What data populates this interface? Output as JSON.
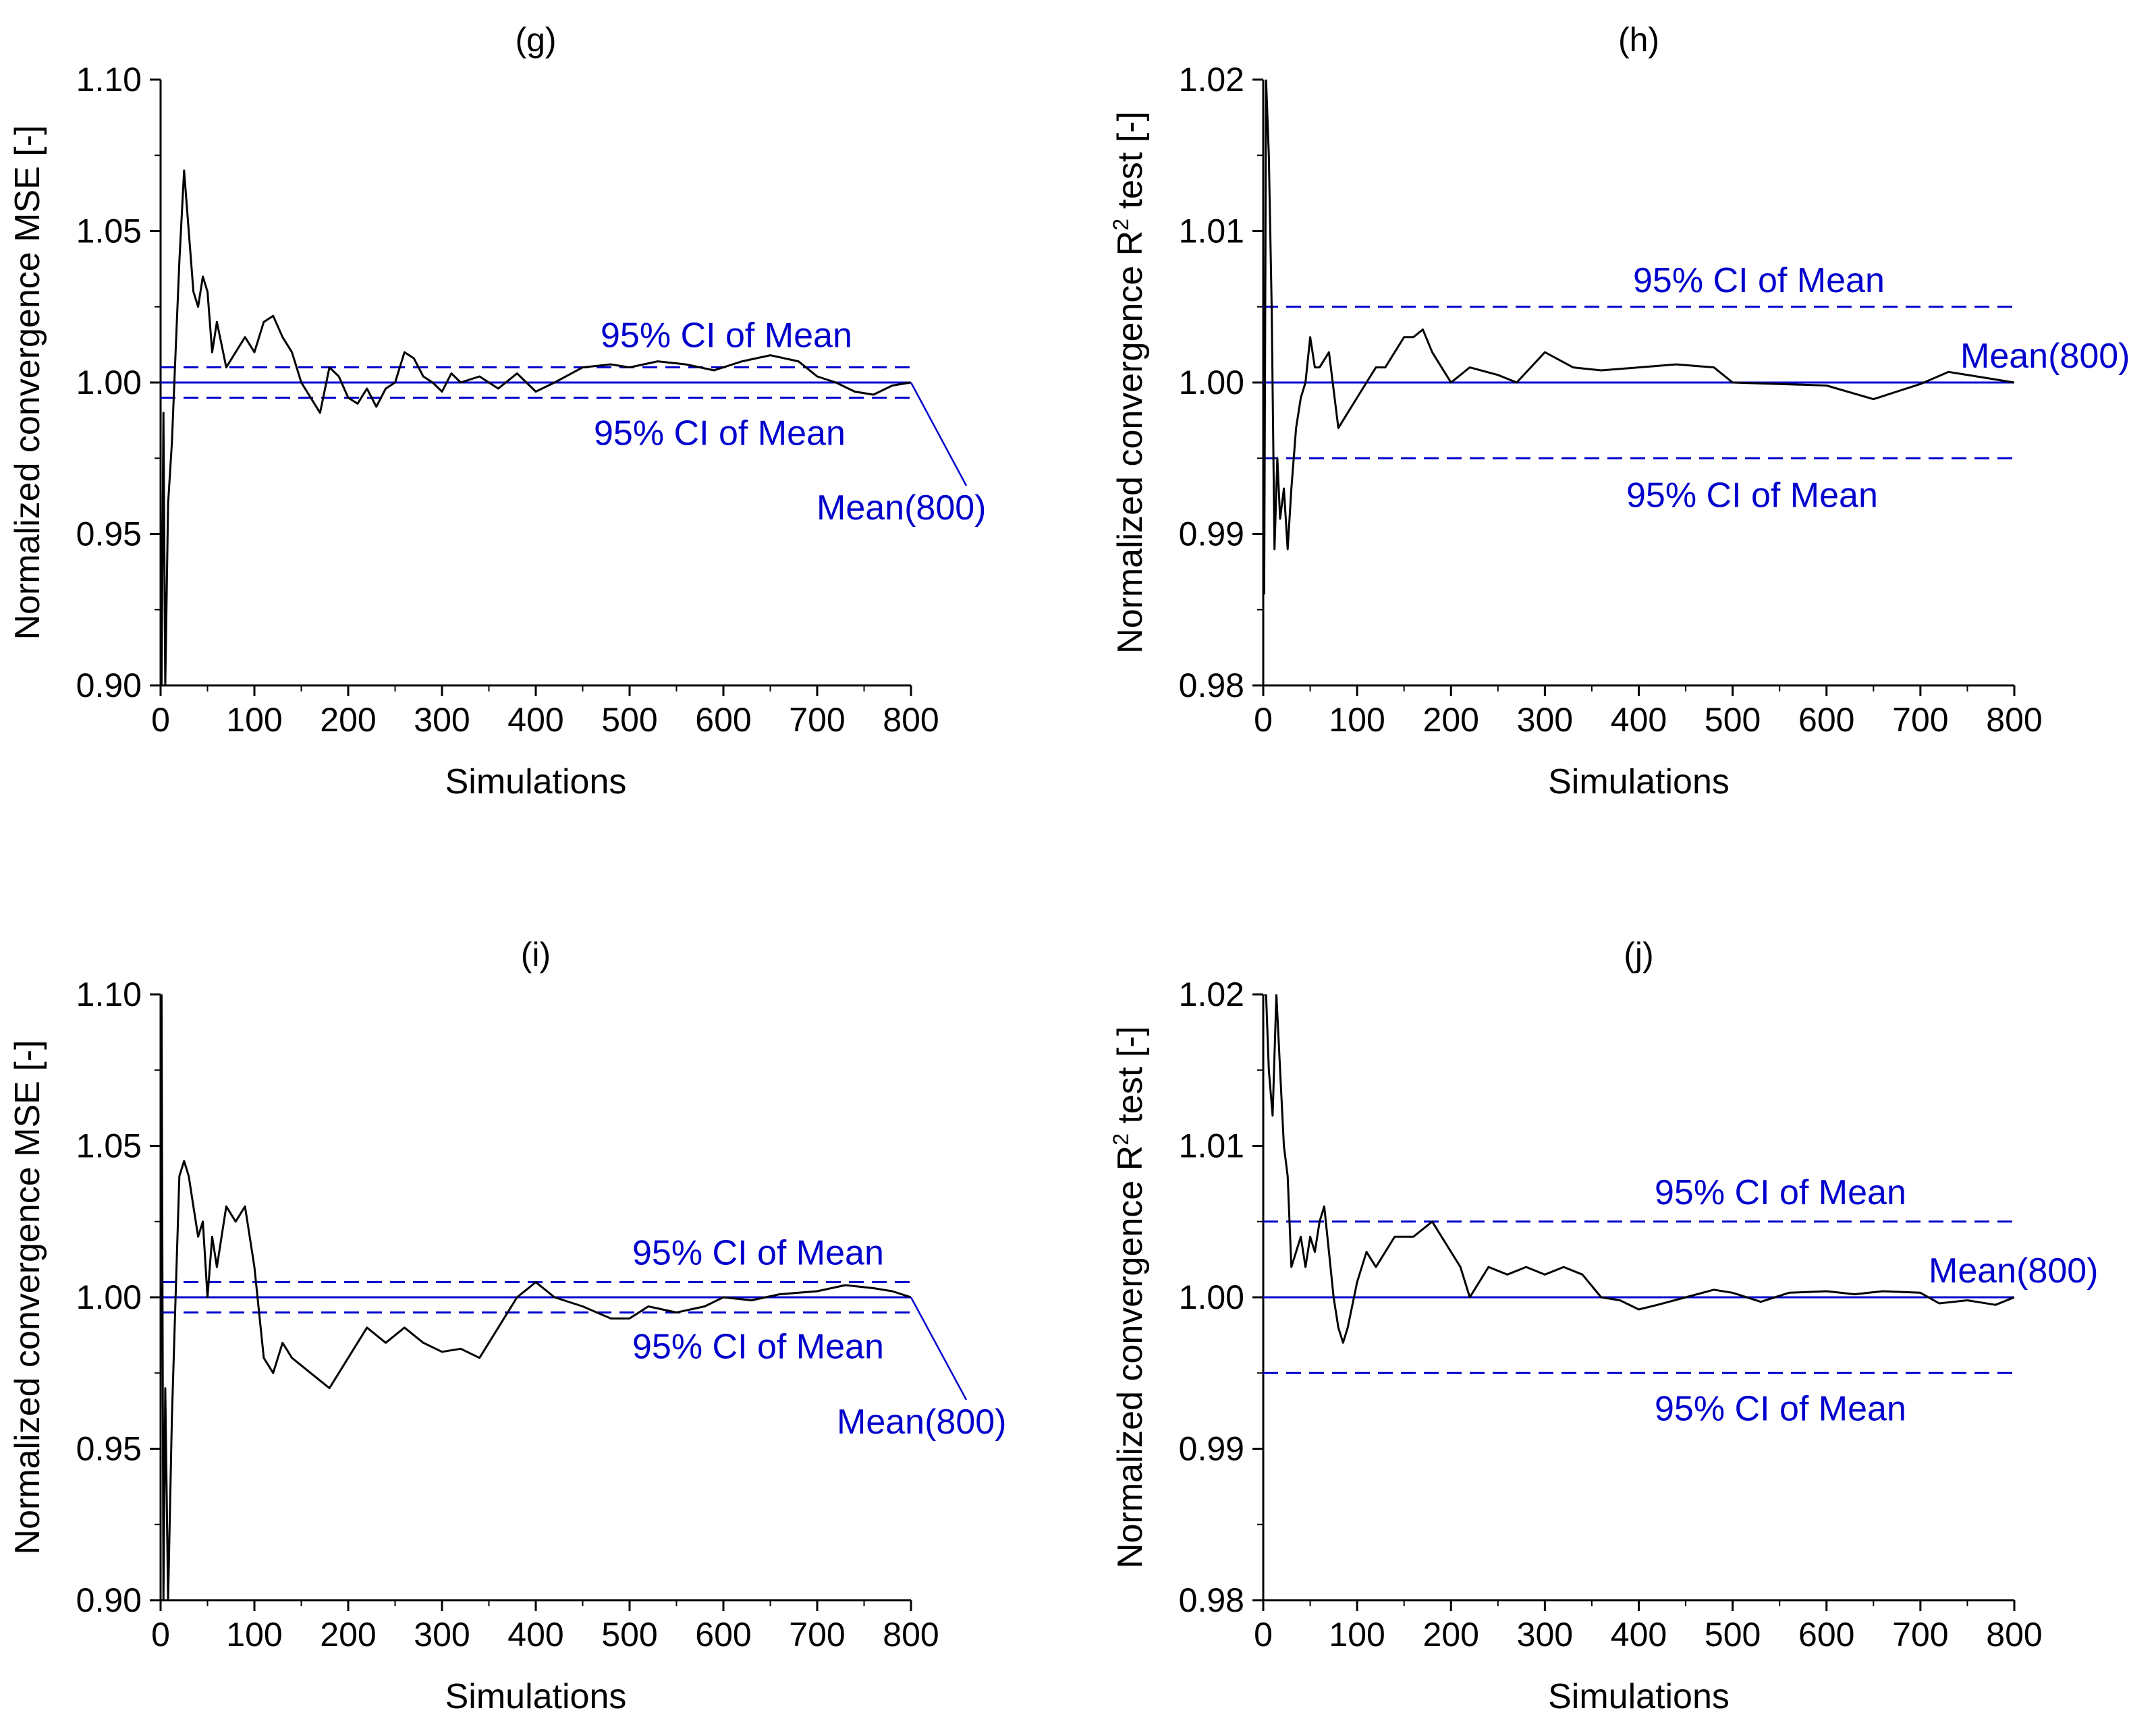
{
  "chart_data": [
    {
      "type": "line",
      "panel": "g",
      "title": "(g)",
      "xlabel": "Simulations",
      "ylabel": "Normalized convergence MSE [-]",
      "xlim": [
        0,
        800
      ],
      "ylim": [
        0.9,
        1.1
      ],
      "xticks": [
        "0",
        "100",
        "200",
        "300",
        "400",
        "500",
        "600",
        "700",
        "800"
      ],
      "yticks": [
        "0.90",
        "0.95",
        "1.00",
        "1.05",
        "1.10"
      ],
      "mean_line": 1.0,
      "ci_upper": 1.005,
      "ci_lower": 0.995,
      "annotations": {
        "ci_upper_label": "95% CI of Mean",
        "ci_lower_label": "95% CI of Mean",
        "mean_label": "Mean(800)"
      },
      "series": [
        {
          "name": "Normalized convergence MSE",
          "x": [
            1,
            3,
            5,
            8,
            12,
            16,
            20,
            25,
            30,
            35,
            40,
            45,
            50,
            55,
            60,
            70,
            80,
            90,
            100,
            110,
            120,
            130,
            140,
            150,
            160,
            170,
            180,
            190,
            200,
            210,
            220,
            230,
            240,
            250,
            260,
            270,
            280,
            290,
            300,
            310,
            320,
            340,
            360,
            380,
            400,
            420,
            450,
            480,
            500,
            530,
            560,
            590,
            620,
            650,
            680,
            700,
            720,
            740,
            760,
            780,
            800
          ],
          "y": [
            0.9,
            0.99,
            0.9,
            0.96,
            0.98,
            1.01,
            1.04,
            1.07,
            1.05,
            1.03,
            1.025,
            1.035,
            1.03,
            1.01,
            1.02,
            1.005,
            1.01,
            1.015,
            1.01,
            1.02,
            1.022,
            1.015,
            1.01,
            1.0,
            0.995,
            0.99,
            1.005,
            1.002,
            0.995,
            0.993,
            0.998,
            0.992,
            0.998,
            1.0,
            1.01,
            1.008,
            1.002,
            1.0,
            0.997,
            1.003,
            1.0,
            1.002,
            0.998,
            1.003,
            0.997,
            1.0,
            1.005,
            1.006,
            1.005,
            1.007,
            1.006,
            1.004,
            1.007,
            1.009,
            1.007,
            1.002,
            1.0,
            0.997,
            0.996,
            0.999,
            1.0
          ]
        }
      ]
    },
    {
      "type": "line",
      "panel": "h",
      "title": "(h)",
      "xlabel": "Simulations",
      "ylabel_main": "Normalized convergence R",
      "ylabel_sup": "2",
      "ylabel_tail": " test [-]",
      "xlim": [
        0,
        800
      ],
      "ylim": [
        0.98,
        1.02
      ],
      "xticks": [
        "0",
        "100",
        "200",
        "300",
        "400",
        "500",
        "600",
        "700",
        "800"
      ],
      "yticks": [
        "0.98",
        "0.99",
        "1.00",
        "1.01",
        "1.02"
      ],
      "mean_line": 1.0,
      "ci_upper": 1.005,
      "ci_lower": 0.995,
      "annotations": {
        "ci_upper_label": "95% CI of Mean",
        "ci_lower_label": "95% CI of Mean",
        "mean_label": "Mean(800)"
      },
      "series": [
        {
          "name": "Normalized convergence R2 test",
          "x": [
            1,
            3,
            6,
            9,
            12,
            15,
            18,
            22,
            26,
            30,
            35,
            40,
            45,
            50,
            55,
            60,
            70,
            80,
            90,
            100,
            110,
            120,
            130,
            140,
            150,
            160,
            170,
            180,
            190,
            200,
            220,
            250,
            270,
            300,
            330,
            360,
            400,
            440,
            480,
            500,
            550,
            600,
            650,
            700,
            730,
            760,
            800
          ],
          "y": [
            0.986,
            1.02,
            1.015,
            1.005,
            0.989,
            0.995,
            0.991,
            0.993,
            0.989,
            0.993,
            0.997,
            0.999,
            1.0,
            1.003,
            1.001,
            1.001,
            1.002,
            0.997,
            0.998,
            0.999,
            1.0,
            1.001,
            1.001,
            1.002,
            1.003,
            1.003,
            1.0035,
            1.002,
            1.001,
            1.0,
            1.001,
            1.0005,
            1.0,
            1.002,
            1.001,
            1.0008,
            1.001,
            1.0012,
            1.001,
            1.0,
            0.9999,
            0.9998,
            0.9989,
            0.9999,
            1.0007,
            1.0004,
            1.0
          ]
        }
      ]
    },
    {
      "type": "line",
      "panel": "i",
      "title": "(i)",
      "xlabel": "Simulations",
      "ylabel": "Normalized convergence MSE [-]",
      "xlim": [
        0,
        800
      ],
      "ylim": [
        0.9,
        1.1
      ],
      "xticks": [
        "0",
        "100",
        "200",
        "300",
        "400",
        "500",
        "600",
        "700",
        "800"
      ],
      "yticks": [
        "0.90",
        "0.95",
        "1.00",
        "1.05",
        "1.10"
      ],
      "mean_line": 1.0,
      "ci_upper": 1.005,
      "ci_lower": 0.995,
      "annotations": {
        "ci_upper_label": "95% CI of Mean",
        "ci_lower_label": "95% CI of Mean",
        "mean_label": "Mean(800)"
      },
      "series": [
        {
          "name": "Normalized convergence MSE",
          "x": [
            1,
            3,
            5,
            8,
            12,
            16,
            20,
            25,
            30,
            35,
            40,
            45,
            50,
            55,
            60,
            70,
            80,
            90,
            100,
            110,
            120,
            130,
            140,
            160,
            180,
            200,
            220,
            240,
            260,
            280,
            300,
            320,
            340,
            360,
            380,
            400,
            420,
            450,
            480,
            500,
            520,
            550,
            580,
            600,
            630,
            660,
            700,
            730,
            760,
            780,
            800
          ],
          "y": [
            1.1,
            0.9,
            0.97,
            0.9,
            0.96,
            1.0,
            1.04,
            1.045,
            1.04,
            1.03,
            1.02,
            1.025,
            1.0,
            1.02,
            1.01,
            1.03,
            1.025,
            1.03,
            1.01,
            0.98,
            0.975,
            0.985,
            0.98,
            0.975,
            0.97,
            0.98,
            0.99,
            0.985,
            0.99,
            0.985,
            0.982,
            0.983,
            0.98,
            0.99,
            1.0,
            1.005,
            1.0,
            0.997,
            0.993,
            0.993,
            0.997,
            0.995,
            0.997,
            1.0,
            0.999,
            1.001,
            1.002,
            1.004,
            1.003,
            1.002,
            1.0
          ]
        }
      ]
    },
    {
      "type": "line",
      "panel": "j",
      "title": "(j)",
      "xlabel": "Simulations",
      "ylabel_main": "Normalized convergence R",
      "ylabel_sup": "2",
      "ylabel_tail": " test [-]",
      "xlim": [
        0,
        800
      ],
      "ylim": [
        0.98,
        1.02
      ],
      "xticks": [
        "0",
        "100",
        "200",
        "300",
        "400",
        "500",
        "600",
        "700",
        "800"
      ],
      "yticks": [
        "0.98",
        "0.99",
        "1.00",
        "1.01",
        "1.02"
      ],
      "mean_line": 1.0,
      "ci_upper": 1.005,
      "ci_lower": 0.995,
      "annotations": {
        "ci_upper_label": "95% CI of Mean",
        "ci_lower_label": "95% CI of Mean",
        "mean_label": "Mean(800)"
      },
      "series": [
        {
          "name": "Normalized convergence R2 test",
          "x": [
            1,
            3,
            6,
            10,
            14,
            18,
            22,
            26,
            30,
            35,
            40,
            45,
            50,
            55,
            60,
            65,
            70,
            75,
            80,
            85,
            90,
            100,
            110,
            120,
            130,
            140,
            150,
            160,
            170,
            180,
            190,
            200,
            210,
            220,
            240,
            260,
            280,
            300,
            320,
            340,
            360,
            380,
            400,
            420,
            450,
            480,
            500,
            530,
            560,
            600,
            630,
            660,
            700,
            720,
            750,
            780,
            800
          ],
          "y": [
            1.02,
            1.02,
            1.015,
            1.012,
            1.02,
            1.015,
            1.01,
            1.008,
            1.002,
            1.003,
            1.004,
            1.002,
            1.004,
            1.003,
            1.005,
            1.006,
            1.003,
            1.0,
            0.998,
            0.997,
            0.998,
            1.001,
            1.003,
            1.002,
            1.003,
            1.004,
            1.004,
            1.004,
            1.0045,
            1.005,
            1.004,
            1.003,
            1.002,
            1.0,
            1.002,
            1.0015,
            1.002,
            1.0015,
            1.002,
            1.0015,
            1.0,
            0.9998,
            0.9992,
            0.9995,
            1.0,
            1.0005,
            1.0003,
            0.9997,
            1.0003,
            1.0004,
            1.0002,
            1.0004,
            1.0003,
            0.9996,
            0.9998,
            0.9995,
            1.0
          ]
        }
      ]
    }
  ]
}
